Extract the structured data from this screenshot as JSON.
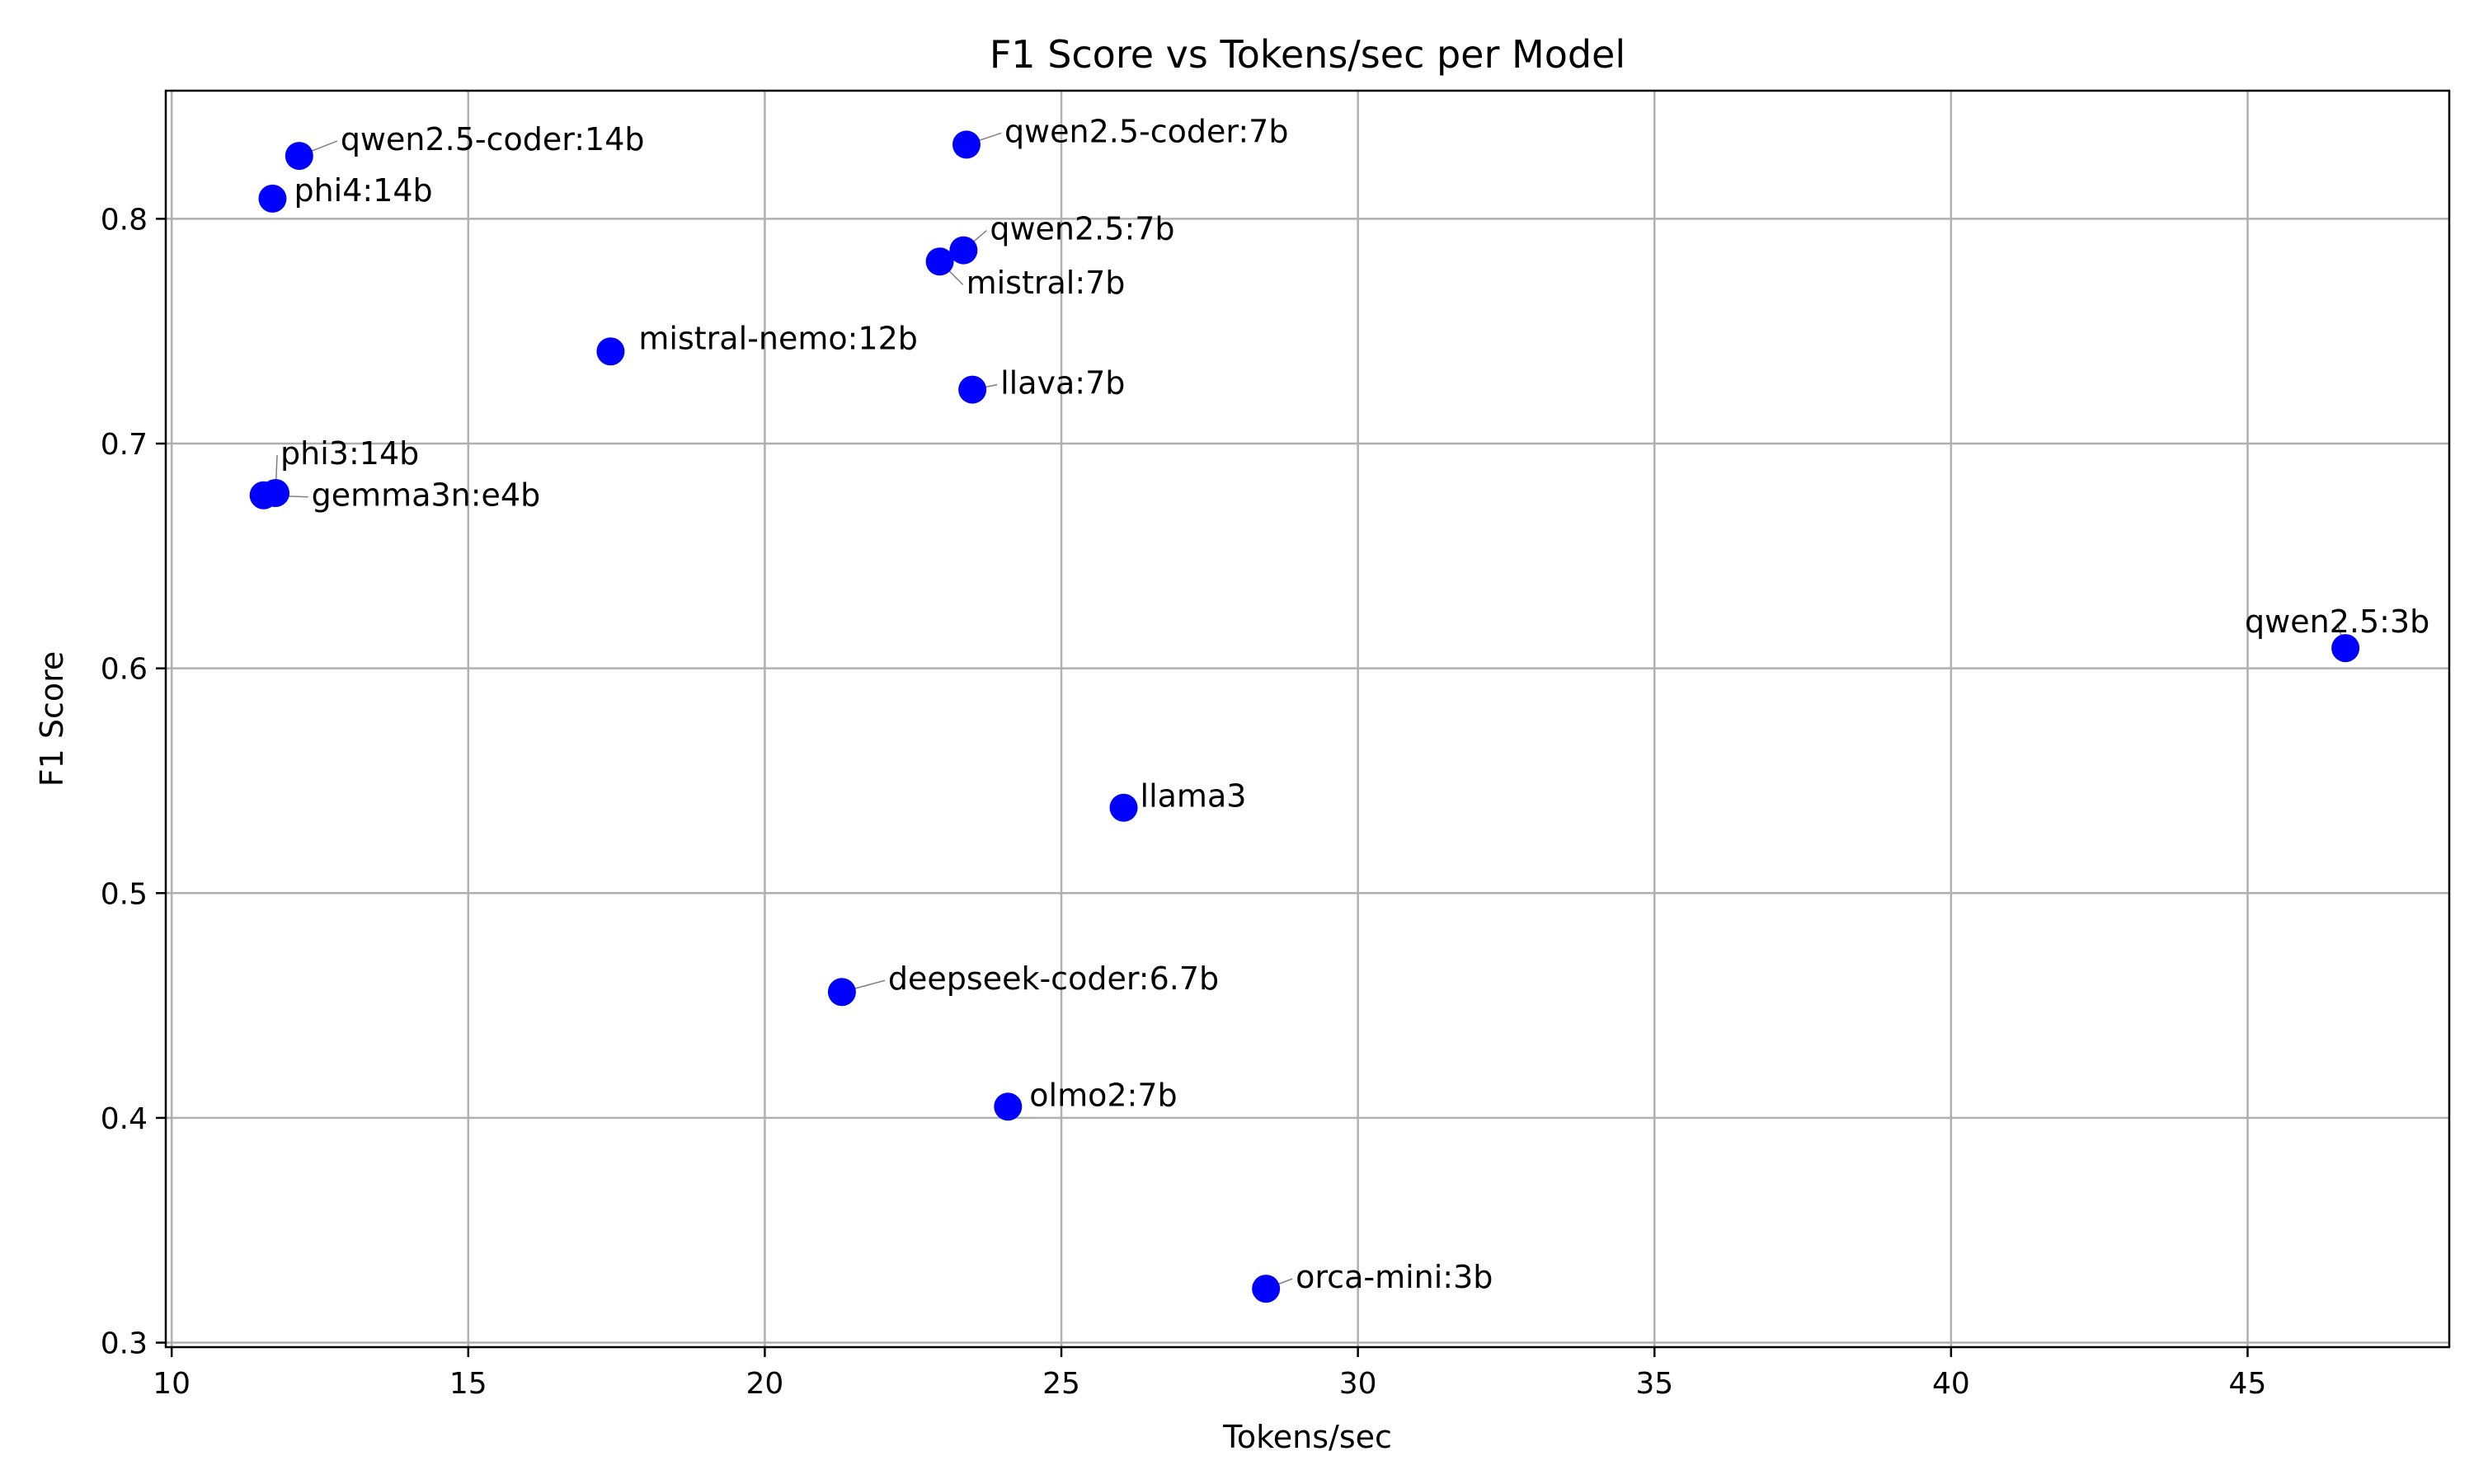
{
  "chart_data": {
    "type": "scatter",
    "title": "F1 Score vs Tokens/sec per Model",
    "xlabel": "Tokens/sec",
    "ylabel": "F1 Score",
    "xlim": [
      9.9,
      48.4
    ],
    "ylim": [
      0.298,
      0.857
    ],
    "xticks": [
      10,
      15,
      20,
      25,
      30,
      35,
      40,
      45
    ],
    "yticks": [
      0.3,
      0.4,
      0.5,
      0.6,
      0.7,
      0.8
    ],
    "grid": true,
    "marker_color": "#0000ff",
    "leader_color": "#808080",
    "points": [
      {
        "label": "qwen2.5-coder:14b",
        "x": 12.15,
        "y": 0.828
      },
      {
        "label": "phi4:14b",
        "x": 11.7,
        "y": 0.809
      },
      {
        "label": "qwen2.5-coder:7b",
        "x": 23.4,
        "y": 0.833
      },
      {
        "label": "qwen2.5:7b",
        "x": 23.35,
        "y": 0.786
      },
      {
        "label": "mistral:7b",
        "x": 22.95,
        "y": 0.781
      },
      {
        "label": "mistral-nemo:12b",
        "x": 17.4,
        "y": 0.741
      },
      {
        "label": "llava:7b",
        "x": 23.5,
        "y": 0.724
      },
      {
        "label": "phi3:14b",
        "x": 11.75,
        "y": 0.678
      },
      {
        "label": "gemma3n:e4b",
        "x": 11.55,
        "y": 0.677
      },
      {
        "label": "qwen2.5:3b",
        "x": 46.65,
        "y": 0.609
      },
      {
        "label": "llama3",
        "x": 26.05,
        "y": 0.538
      },
      {
        "label": "deepseek-coder:6.7b",
        "x": 21.3,
        "y": 0.456
      },
      {
        "label": "olmo2:7b",
        "x": 24.1,
        "y": 0.405
      },
      {
        "label": "orca-mini:3b",
        "x": 28.45,
        "y": 0.324
      }
    ]
  }
}
